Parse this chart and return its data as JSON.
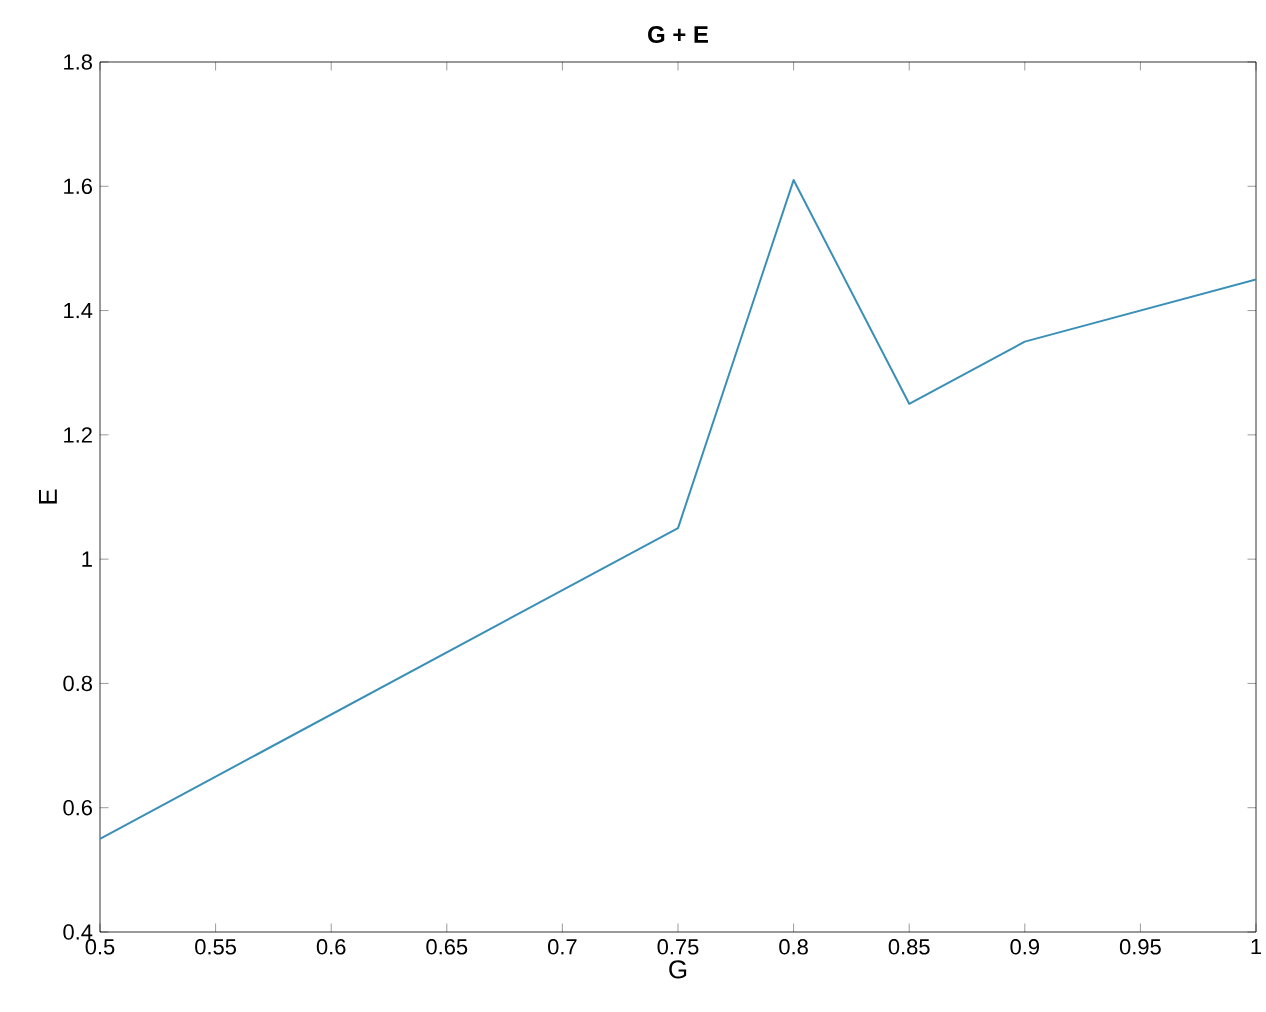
{
  "chart_data": {
    "type": "line",
    "title": "G + E",
    "xlabel": "G",
    "ylabel": "E",
    "x": [
      0.5,
      0.75,
      0.8,
      0.85,
      0.9,
      1.0
    ],
    "series": [
      {
        "color": "#3a8fb7",
        "values": [
          0.55,
          1.05,
          1.61,
          1.25,
          1.35,
          1.45
        ]
      }
    ],
    "xlim": [
      0.5,
      1.0
    ],
    "ylim": [
      0.4,
      1.8
    ],
    "xticks": [
      0.5,
      0.55,
      0.6,
      0.65,
      0.7,
      0.75,
      0.8,
      0.85,
      0.9,
      0.95,
      1
    ],
    "yticks": [
      0.4,
      0.6,
      0.8,
      1,
      1.2,
      1.4,
      1.6,
      1.8
    ],
    "grid": false,
    "marker": "none",
    "line_style": "solid"
  }
}
